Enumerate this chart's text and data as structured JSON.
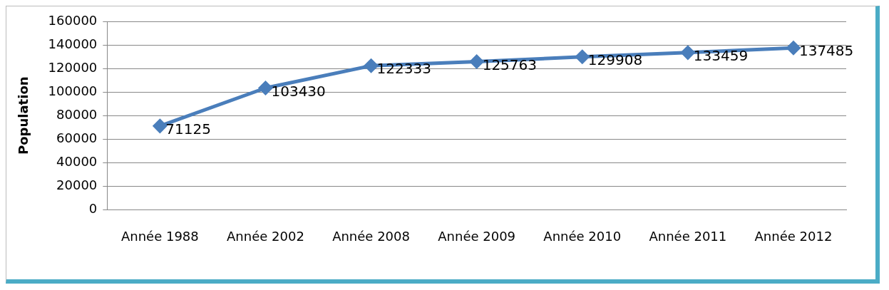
{
  "chart_data": {
    "type": "line",
    "ylabel": "Population",
    "categories": [
      "Année 1988",
      "Année 2002",
      "Année 2008",
      "Année 2009",
      "Année 2010",
      "Année 2011",
      "Année 2012"
    ],
    "series": [
      {
        "color": "#4a7ebb",
        "values": [
          71125,
          103430,
          122333,
          125763,
          129908,
          133459,
          137485
        ]
      }
    ],
    "ylim": [
      0,
      160000
    ],
    "yticks": [
      0,
      20000,
      40000,
      60000,
      80000,
      100000,
      120000,
      140000,
      160000
    ],
    "grid": "y",
    "legend": false,
    "marker": "diamond",
    "line_style": "solid",
    "data_labels": true
  }
}
